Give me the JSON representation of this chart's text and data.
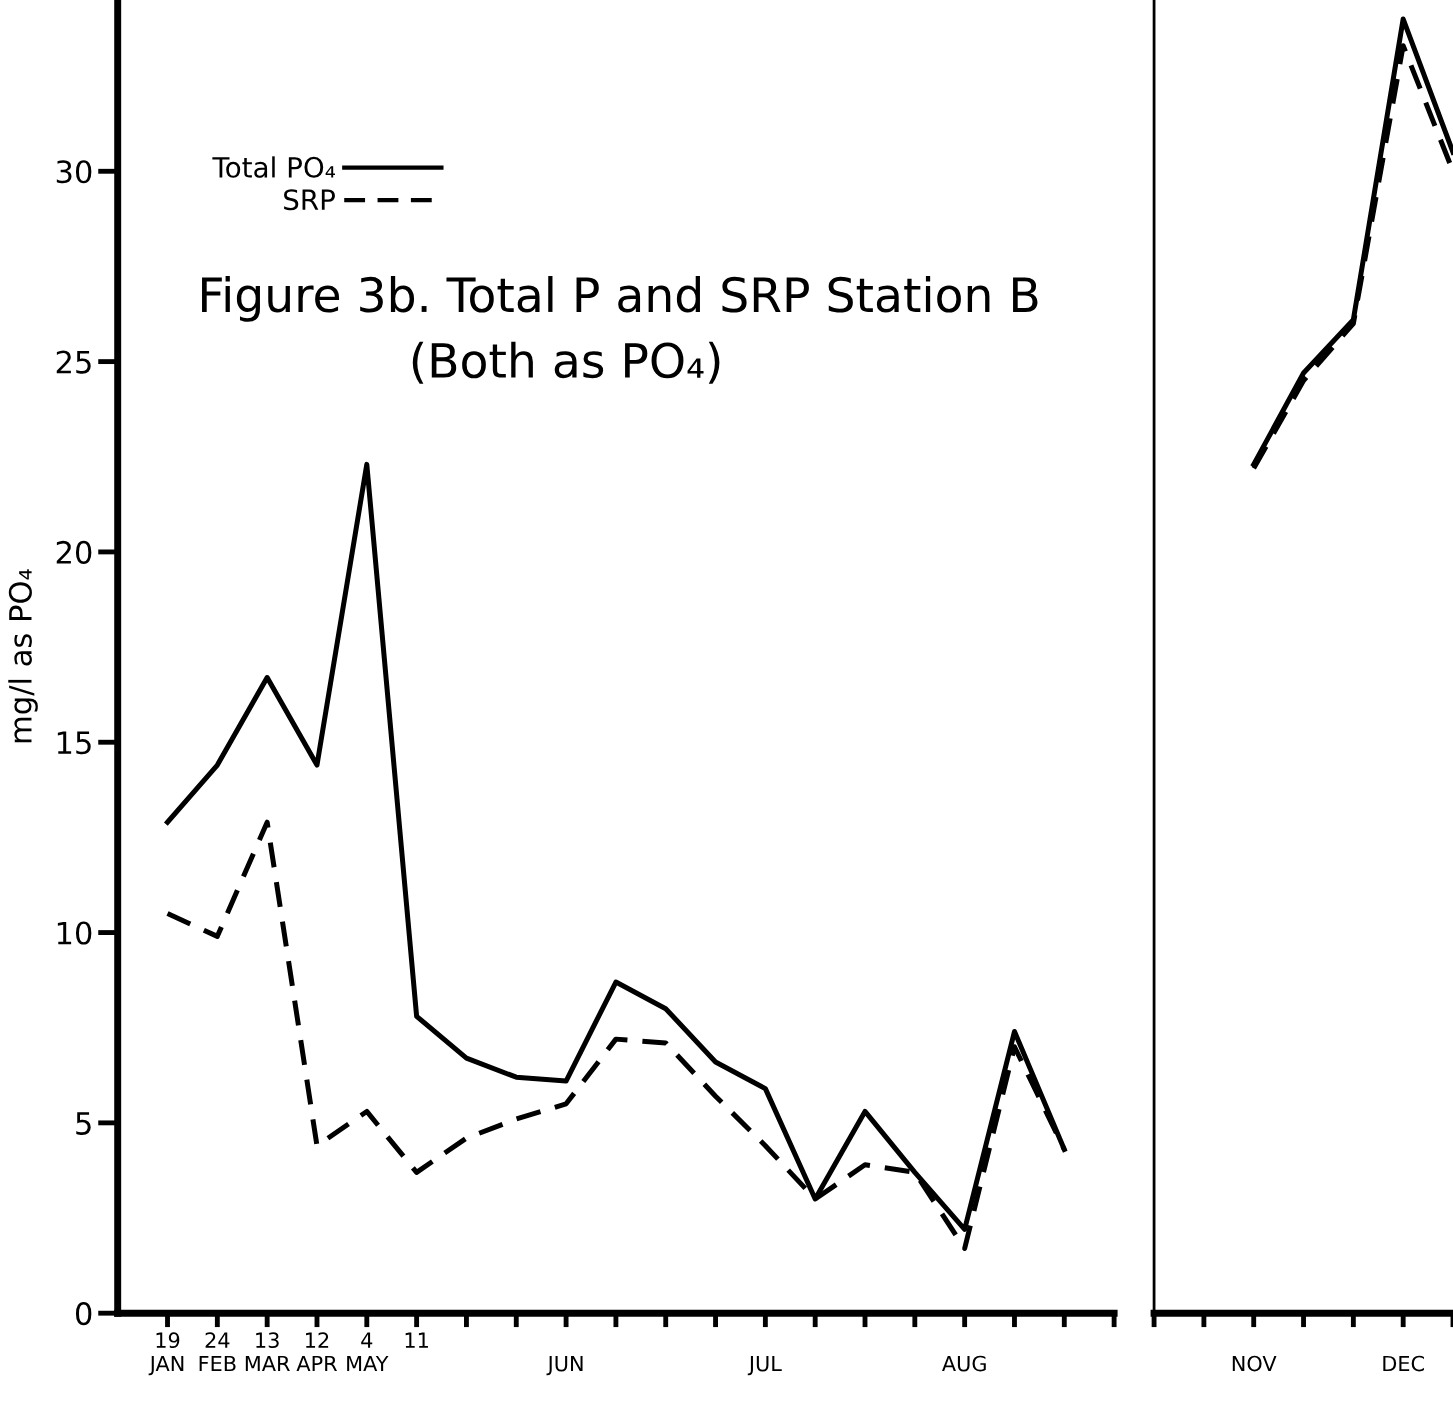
{
  "chart_data": [
    {
      "type": "line",
      "title": "Figure 3b. Total P and SRP Station B",
      "subtitle": "(Both as PO₄)",
      "ylabel": "mg/l as PO₄",
      "categories": [
        "19\nJAN",
        "24\nFEB",
        "13\nMAR",
        "12\nAPR",
        "4\nMAY",
        "11",
        null,
        null,
        "\nJUN",
        null,
        null,
        null,
        "\nJUL",
        null,
        null,
        null,
        "\nAUG",
        null,
        null,
        null
      ],
      "ylim": [
        0,
        34.5
      ],
      "yticks": [
        0,
        5,
        10,
        15,
        20,
        25,
        30
      ],
      "legend": "top left",
      "grid": false,
      "series": [
        {
          "name": "Total PO₄",
          "color": "#000000",
          "line_style": "solid",
          "values": [
            12.9,
            14.4,
            16.7,
            14.4,
            22.3,
            7.8,
            6.7,
            6.2,
            6.1,
            8.7,
            8.0,
            6.6,
            5.9,
            3.0,
            5.3,
            3.7,
            2.2,
            7.4,
            4.3,
            null
          ]
        },
        {
          "name": "SRP",
          "color": "#000000",
          "line_style": "dashed",
          "values": [
            10.5,
            9.9,
            12.9,
            4.4,
            5.3,
            3.7,
            4.6,
            5.1,
            5.5,
            7.2,
            7.1,
            5.7,
            4.4,
            3.0,
            3.9,
            3.7,
            1.7,
            7.0,
            4.3,
            null
          ]
        }
      ]
    },
    {
      "type": "line",
      "categories": [
        null,
        null,
        "\nNOV",
        null,
        null,
        "\nDEC",
        null
      ],
      "ylim": [
        0,
        34.5
      ],
      "yticks": [
        0,
        5,
        10,
        15,
        20,
        25,
        30
      ],
      "tick_labels": "x",
      "series": [
        {
          "color": "#000000",
          "line_style": "solid",
          "values": [
            null,
            null,
            22.3,
            24.7,
            26.1,
            34.0,
            30.5
          ]
        },
        {
          "color": "#000000",
          "line_style": "dashed",
          "values": [
            null,
            null,
            22.2,
            24.5,
            26.0,
            33.3,
            30.0
          ]
        }
      ]
    }
  ]
}
